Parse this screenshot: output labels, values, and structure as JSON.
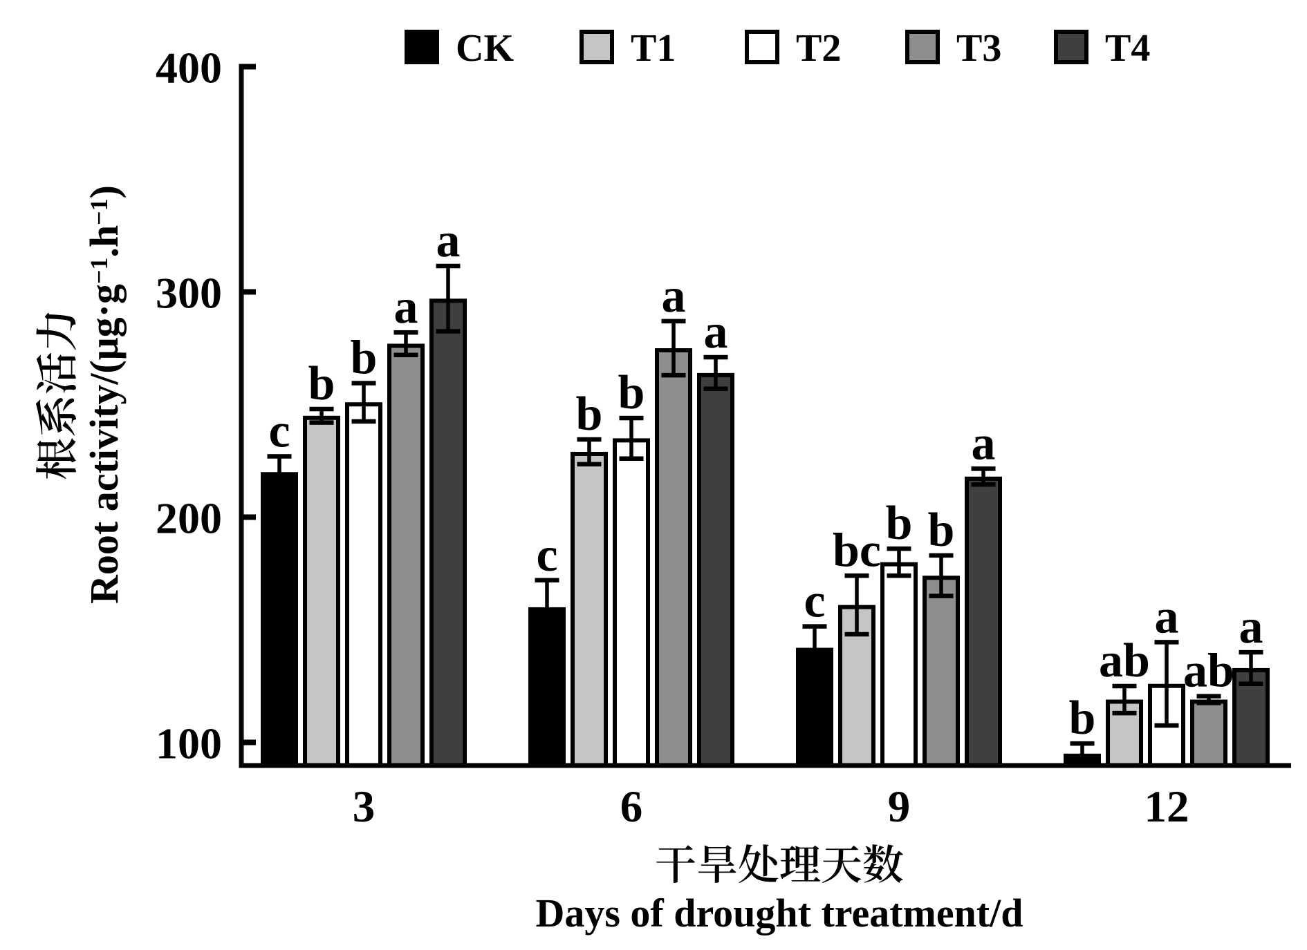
{
  "figure": {
    "background": "#ffffff"
  },
  "chart_data": {
    "type": "bar",
    "title": "",
    "categories": [
      "3",
      "6",
      "9",
      "12"
    ],
    "series": [
      {
        "name": "CK",
        "color": "#000000",
        "values": [
          220,
          160,
          142,
          95
        ],
        "errors": [
          7,
          12,
          9.5,
          4.5
        ],
        "sig_letters": [
          "c",
          "c",
          "c",
          "b"
        ]
      },
      {
        "name": "T1",
        "color": "#c5c5c5",
        "values": [
          245,
          229,
          161,
          119
        ],
        "errors": [
          3,
          5.5,
          13,
          6
        ],
        "sig_letters": [
          "b",
          "b",
          "bc",
          "ab"
        ]
      },
      {
        "name": "T2",
        "color": "#ffffff",
        "values": [
          251,
          235,
          180,
          126
        ],
        "errors": [
          8.5,
          9,
          6,
          18.5
        ],
        "sig_letters": [
          "b",
          "b",
          "b",
          "a"
        ]
      },
      {
        "name": "T3",
        "color": "#8e8e8e",
        "values": [
          277,
          275,
          174,
          119
        ],
        "errors": [
          5,
          12,
          9,
          1.5
        ],
        "sig_letters": [
          "a",
          "a",
          "b",
          "ab"
        ]
      },
      {
        "name": "T4",
        "color": "#3f3f3f",
        "values": [
          297,
          264,
          218,
          133
        ],
        "errors": [
          14.5,
          7,
          3.5,
          7
        ],
        "sig_letters": [
          "a",
          "a",
          "a",
          "a"
        ]
      }
    ],
    "ylabel_zh": "根系活力",
    "ylabel_en": "Root activity/(μg·g⁻¹.h⁻¹)",
    "xlabel_zh": "干旱处理天数",
    "xlabel_en": "Days of drought treatment/d",
    "yticks": [
      100,
      200,
      300,
      400
    ],
    "ylim": [
      90,
      400
    ],
    "grid": false,
    "legend_position": "top",
    "bar_edge_color": "#000000",
    "error_bars": true
  }
}
